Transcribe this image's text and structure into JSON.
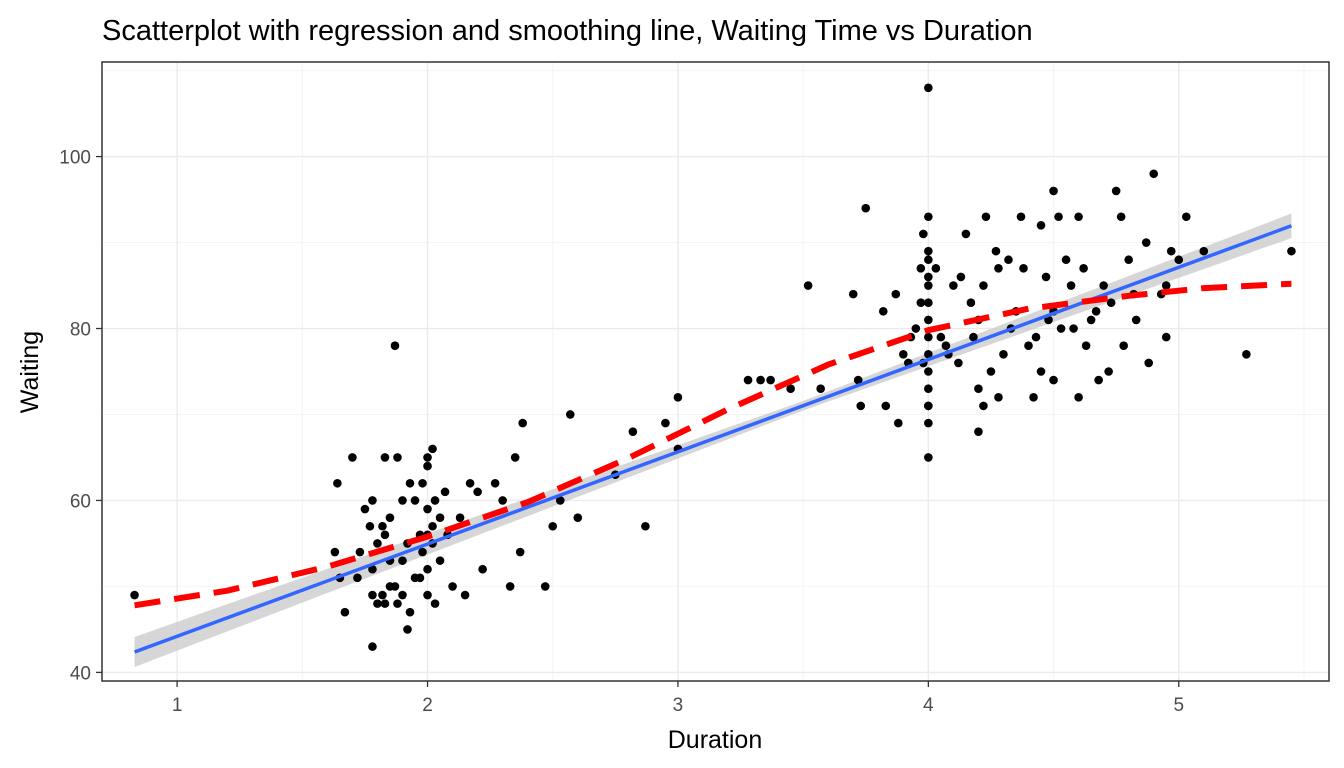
{
  "chart_data": {
    "type": "scatter",
    "title": "Scatterplot with regression and smoothing line, Waiting Time vs Duration",
    "xlabel": "Duration",
    "ylabel": "Waiting",
    "xlim": [
      0.7,
      5.6
    ],
    "ylim": [
      39,
      111
    ],
    "x_ticks": [
      1,
      2,
      3,
      4,
      5
    ],
    "y_ticks": [
      40,
      60,
      80,
      100
    ],
    "grid": true,
    "colors": {
      "points": "#000000",
      "regression": "#3366ff",
      "confidence_band": "#cccccc",
      "smoother": "#ff0000",
      "grid_major": "#ebebeb",
      "grid_minor": "#f4f4f4",
      "panel_border": "#333333"
    },
    "regression": {
      "slope": 10.73,
      "intercept": 33.47,
      "x_range": [
        0.83,
        5.45
      ]
    },
    "smoother": {
      "x": [
        0.83,
        1.2,
        1.6,
        2.0,
        2.4,
        2.8,
        3.2,
        3.6,
        4.0,
        4.4,
        4.8,
        5.1,
        5.45
      ],
      "y": [
        47.8,
        49.5,
        52.3,
        55.8,
        59.8,
        64.9,
        70.6,
        75.8,
        79.8,
        82.3,
        83.8,
        84.7,
        85.2
      ]
    },
    "series": [
      {
        "values": [
          [
            0.83,
            49
          ],
          [
            1.63,
            54
          ],
          [
            1.65,
            51
          ],
          [
            1.64,
            62
          ],
          [
            1.67,
            47
          ],
          [
            1.7,
            65
          ],
          [
            1.72,
            51
          ],
          [
            1.73,
            54
          ],
          [
            1.75,
            59
          ],
          [
            1.77,
            57
          ],
          [
            1.78,
            60
          ],
          [
            1.78,
            52
          ],
          [
            1.78,
            43
          ],
          [
            1.78,
            49
          ],
          [
            1.8,
            55
          ],
          [
            1.8,
            48
          ],
          [
            1.82,
            57
          ],
          [
            1.82,
            49
          ],
          [
            1.83,
            48
          ],
          [
            1.83,
            56
          ],
          [
            1.83,
            65
          ],
          [
            1.85,
            58
          ],
          [
            1.85,
            53
          ],
          [
            1.85,
            50
          ],
          [
            1.87,
            78
          ],
          [
            1.87,
            50
          ],
          [
            1.88,
            48
          ],
          [
            1.88,
            65
          ],
          [
            1.9,
            53
          ],
          [
            1.9,
            49
          ],
          [
            1.9,
            60
          ],
          [
            1.92,
            45
          ],
          [
            1.92,
            55
          ],
          [
            1.93,
            62
          ],
          [
            1.93,
            47
          ],
          [
            1.95,
            51
          ],
          [
            1.95,
            60
          ],
          [
            1.97,
            56
          ],
          [
            1.97,
            51
          ],
          [
            1.98,
            54
          ],
          [
            1.98,
            62
          ],
          [
            2.0,
            49
          ],
          [
            2.0,
            59
          ],
          [
            2.0,
            65
          ],
          [
            2.0,
            64
          ],
          [
            2.0,
            56
          ],
          [
            2.0,
            52
          ],
          [
            2.02,
            57
          ],
          [
            2.02,
            55
          ],
          [
            2.02,
            66
          ],
          [
            2.03,
            60
          ],
          [
            2.03,
            48
          ],
          [
            2.05,
            53
          ],
          [
            2.05,
            58
          ],
          [
            2.07,
            61
          ],
          [
            2.08,
            56
          ],
          [
            2.1,
            50
          ],
          [
            2.13,
            58
          ],
          [
            2.15,
            49
          ],
          [
            2.17,
            62
          ],
          [
            2.2,
            61
          ],
          [
            2.22,
            52
          ],
          [
            2.27,
            62
          ],
          [
            2.3,
            60
          ],
          [
            2.33,
            50
          ],
          [
            2.35,
            65
          ],
          [
            2.37,
            54
          ],
          [
            2.38,
            69
          ],
          [
            2.47,
            50
          ],
          [
            2.5,
            57
          ],
          [
            2.53,
            60
          ],
          [
            2.57,
            70
          ],
          [
            2.6,
            58
          ],
          [
            2.75,
            63
          ],
          [
            2.82,
            68
          ],
          [
            2.87,
            57
          ],
          [
            2.95,
            69
          ],
          [
            3.0,
            66
          ],
          [
            3.0,
            72
          ],
          [
            3.28,
            74
          ],
          [
            3.33,
            74
          ],
          [
            3.37,
            74
          ],
          [
            3.45,
            73
          ],
          [
            3.52,
            85
          ],
          [
            3.57,
            73
          ],
          [
            3.7,
            84
          ],
          [
            3.72,
            74
          ],
          [
            3.73,
            71
          ],
          [
            3.75,
            94
          ],
          [
            3.82,
            82
          ],
          [
            3.83,
            71
          ],
          [
            3.87,
            84
          ],
          [
            3.88,
            69
          ],
          [
            3.9,
            77
          ],
          [
            3.92,
            76
          ],
          [
            3.93,
            79
          ],
          [
            3.95,
            80
          ],
          [
            3.97,
            83
          ],
          [
            3.97,
            87
          ],
          [
            3.98,
            76
          ],
          [
            3.98,
            91
          ],
          [
            4.0,
            108
          ],
          [
            4.0,
            65
          ],
          [
            4.0,
            69
          ],
          [
            4.0,
            71
          ],
          [
            4.0,
            73
          ],
          [
            4.0,
            75
          ],
          [
            4.0,
            77
          ],
          [
            4.0,
            79
          ],
          [
            4.0,
            81
          ],
          [
            4.0,
            83
          ],
          [
            4.0,
            85
          ],
          [
            4.0,
            86
          ],
          [
            4.0,
            88
          ],
          [
            4.0,
            89
          ],
          [
            4.0,
            93
          ],
          [
            4.0,
            71
          ],
          [
            4.03,
            87
          ],
          [
            4.05,
            79
          ],
          [
            4.07,
            78
          ],
          [
            4.08,
            77
          ],
          [
            4.1,
            85
          ],
          [
            4.12,
            76
          ],
          [
            4.13,
            86
          ],
          [
            4.15,
            91
          ],
          [
            4.17,
            83
          ],
          [
            4.18,
            79
          ],
          [
            4.2,
            73
          ],
          [
            4.2,
            81
          ],
          [
            4.2,
            68
          ],
          [
            4.22,
            85
          ],
          [
            4.22,
            71
          ],
          [
            4.23,
            93
          ],
          [
            4.25,
            75
          ],
          [
            4.27,
            89
          ],
          [
            4.28,
            72
          ],
          [
            4.28,
            87
          ],
          [
            4.3,
            77
          ],
          [
            4.32,
            88
          ],
          [
            4.33,
            80
          ],
          [
            4.35,
            82
          ],
          [
            4.37,
            93
          ],
          [
            4.38,
            87
          ],
          [
            4.4,
            78
          ],
          [
            4.42,
            72
          ],
          [
            4.43,
            79
          ],
          [
            4.45,
            92
          ],
          [
            4.45,
            75
          ],
          [
            4.47,
            86
          ],
          [
            4.48,
            81
          ],
          [
            4.5,
            82
          ],
          [
            4.5,
            96
          ],
          [
            4.5,
            74
          ],
          [
            4.52,
            93
          ],
          [
            4.53,
            80
          ],
          [
            4.55,
            88
          ],
          [
            4.57,
            85
          ],
          [
            4.58,
            80
          ],
          [
            4.6,
            72
          ],
          [
            4.6,
            93
          ],
          [
            4.62,
            87
          ],
          [
            4.63,
            78
          ],
          [
            4.65,
            81
          ],
          [
            4.67,
            82
          ],
          [
            4.68,
            74
          ],
          [
            4.7,
            85
          ],
          [
            4.72,
            75
          ],
          [
            4.73,
            83
          ],
          [
            4.75,
            96
          ],
          [
            4.77,
            93
          ],
          [
            4.78,
            78
          ],
          [
            4.8,
            88
          ],
          [
            4.82,
            84
          ],
          [
            4.83,
            81
          ],
          [
            4.87,
            90
          ],
          [
            4.88,
            76
          ],
          [
            4.9,
            98
          ],
          [
            4.93,
            84
          ],
          [
            4.95,
            85
          ],
          [
            4.95,
            79
          ],
          [
            4.97,
            89
          ],
          [
            5.0,
            88
          ],
          [
            5.03,
            93
          ],
          [
            5.1,
            89
          ],
          [
            5.27,
            77
          ],
          [
            5.45,
            89
          ]
        ]
      }
    ]
  }
}
